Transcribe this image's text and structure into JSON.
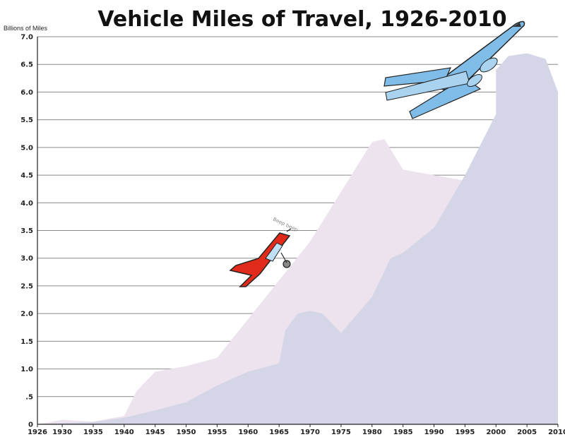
{
  "chart_data": {
    "type": "area",
    "title": "Vehicle Miles of Travel, 1926-2010",
    "ylabel": "Billions of Miles",
    "xlabel": "",
    "xlim": [
      1926,
      2010
    ],
    "ylim": [
      0,
      7.0
    ],
    "grid": true,
    "x_ticks": [
      "1926",
      "1930",
      "1935",
      "1940",
      "1945",
      "1950",
      "1955",
      "1960",
      "1965",
      "1970",
      "1975",
      "1980",
      "1985",
      "1990",
      "1995",
      "2000",
      "2005",
      "2010"
    ],
    "y_ticks": [
      "0",
      ".5",
      "1.0",
      "1.5",
      "2.0",
      "2.5",
      "3.0",
      "3.5",
      "4.0",
      "4.5",
      "5.0",
      "5.5",
      "6.0",
      "6.5",
      "7.0"
    ],
    "series": [
      {
        "color": "#ece3ee",
        "points": [
          [
            1926,
            0
          ],
          [
            1930,
            0.08
          ],
          [
            1935,
            0.05
          ],
          [
            1940,
            0.15
          ],
          [
            1942,
            0.6
          ],
          [
            1945,
            0.95
          ],
          [
            1950,
            1.05
          ],
          [
            1955,
            1.2
          ],
          [
            1960,
            1.9
          ],
          [
            1965,
            2.6
          ],
          [
            1970,
            3.3
          ],
          [
            1975,
            4.2
          ],
          [
            1980,
            5.1
          ],
          [
            1982,
            5.15
          ],
          [
            1985,
            4.6
          ],
          [
            1990,
            4.5
          ],
          [
            1995,
            4.4
          ],
          [
            1995,
            0
          ]
        ]
      },
      {
        "color": "#d5d5e8",
        "points": [
          [
            1926,
            0
          ],
          [
            1930,
            0.02
          ],
          [
            1935,
            0.04
          ],
          [
            1940,
            0.12
          ],
          [
            1945,
            0.25
          ],
          [
            1950,
            0.4
          ],
          [
            1955,
            0.7
          ],
          [
            1960,
            0.95
          ],
          [
            1965,
            1.1
          ],
          [
            1966,
            1.7
          ],
          [
            1968,
            2.0
          ],
          [
            1970,
            2.05
          ],
          [
            1972,
            2.0
          ],
          [
            1975,
            1.65
          ],
          [
            1980,
            2.3
          ],
          [
            1983,
            3.0
          ],
          [
            1985,
            3.1
          ],
          [
            1990,
            3.55
          ],
          [
            1995,
            4.5
          ],
          [
            2000,
            5.6
          ],
          [
            2000,
            6.4
          ],
          [
            2002,
            6.65
          ],
          [
            2005,
            6.7
          ],
          [
            2008,
            6.6
          ],
          [
            2010,
            6.0
          ],
          [
            2010,
            0
          ]
        ]
      }
    ]
  },
  "images": {
    "small_plane": "red-propeller-plane",
    "jet": "blue-jet-airliner",
    "small_plane_caption": "Beep beep"
  }
}
